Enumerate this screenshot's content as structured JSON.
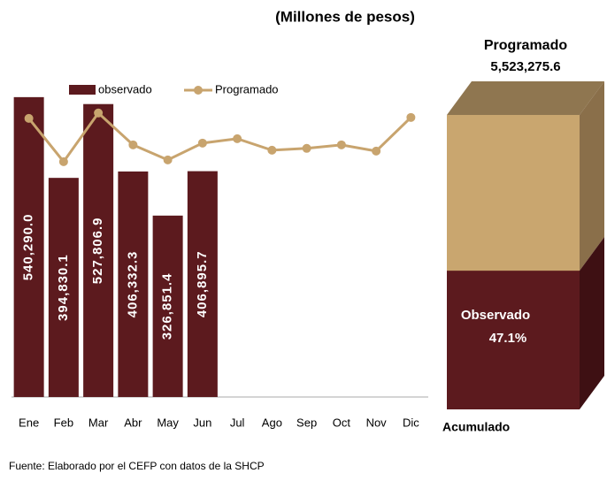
{
  "chart_data": {
    "type": "bar",
    "title": "(Millones de pesos)",
    "categories": [
      "Ene",
      "Feb",
      "Mar",
      "Abr",
      "May",
      "Jun",
      "Jul",
      "Ago",
      "Sep",
      "Oct",
      "Nov",
      "Dic"
    ],
    "ylim": [
      0,
      650000
    ],
    "series": [
      {
        "name": "observado",
        "type": "bar",
        "color": "#5c1a1e",
        "values": [
          540290.0,
          394830.1,
          527806.9,
          406332.3,
          326851.4,
          406895.7,
          null,
          null,
          null,
          null,
          null,
          null
        ],
        "value_labels": [
          "540,290.0",
          "394,830.1",
          "527,806.9",
          "406,332.3",
          "326,851.4",
          "406,895.7",
          null,
          null,
          null,
          null,
          null,
          null
        ]
      },
      {
        "name": "Programado",
        "type": "line",
        "color": "#c8a46e",
        "values": [
          502000,
          424000,
          511700,
          454300,
          427200,
          457500,
          465400,
          444700,
          448000,
          454300,
          443100,
          503700
        ]
      }
    ],
    "summary": {
      "title": "Programado",
      "total": 5523275.6,
      "total_label": "5,523,275.6",
      "observed_label": "Observado",
      "observed_pct": 47.1,
      "observed_pct_label": "47.1%",
      "footer": "Acumulado"
    },
    "source": "Fuente: Elaborado por el CEFP con datos de la SHCP"
  }
}
